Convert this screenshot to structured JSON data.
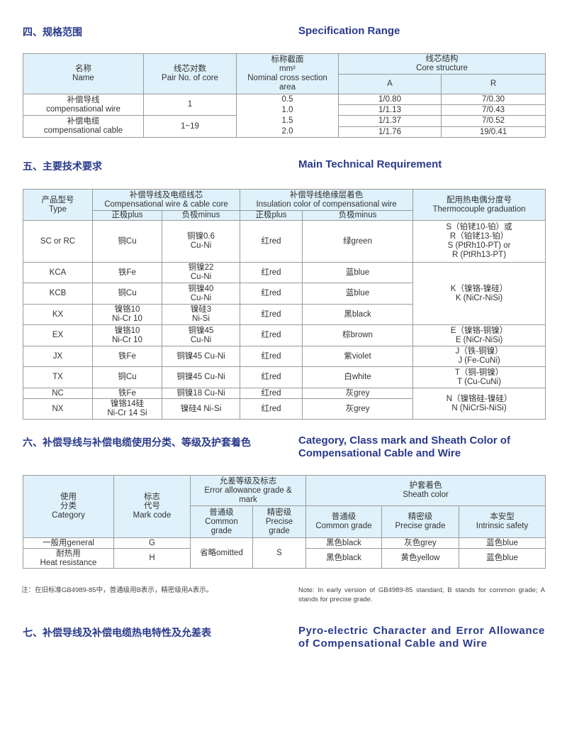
{
  "sections": {
    "s4": {
      "cn": "四、规格范围",
      "en": "Specification Range"
    },
    "s5": {
      "cn": "五、主要技术要求",
      "en": "Main Technical Requirement"
    },
    "s6": {
      "cn": "六、补偿导线与补偿电缆使用分类、等级及护套着色",
      "en": "Category, Class mark and Sheath Color of Compensational Cable and Wire"
    },
    "s7": {
      "cn": "七、补偿导线及补偿电缆热电特性及允差表",
      "en": "Pyro-electric Character and Error Allowance of Compensational Cable and Wire"
    }
  },
  "spec_table": {
    "headers": {
      "name": "名称\nName",
      "pairs": "线芯对数\nPair No. of core",
      "area": "标称截面\nmm²\nNominal cross section\narea",
      "core": "线芯结构\nCore structure",
      "a": "A",
      "r": "R"
    },
    "names": [
      "补偿导线\ncompensational wire",
      "补偿电缆\ncompensational cable"
    ],
    "pairs": [
      "1",
      "1~19"
    ],
    "rows": [
      {
        "area": "0.5",
        "a": "1/0.80",
        "r": "7/0.30"
      },
      {
        "area": "1.0",
        "a": "1/1.13",
        "r": "7/0.43"
      },
      {
        "area": "1.5",
        "a": "1/1.37",
        "r": "7/0.52"
      },
      {
        "area": "2.0",
        "a": "1/1.76",
        "r": "19/0.41"
      }
    ]
  },
  "tech_table": {
    "headers": {
      "type": "产品型号\nType",
      "core": "补偿导线及电缆线芯\nCompensational wire & cable core",
      "insulation": "补偿导线绝缘层着色\nInsulation color of compensational wire",
      "graduation": "配用热电偶分度号\nThermocouple graduation",
      "plus": "正极plus",
      "minus": "负极minus"
    },
    "rows": [
      {
        "type": "SC or RC",
        "core_plus": "铜Cu",
        "core_minus": "铜镍0.6\nCu-Ni",
        "ins_plus": "红red",
        "ins_minus": "绿green"
      },
      {
        "type": "KCA",
        "core_plus": "铁Fe",
        "core_minus": "铜镍22\nCu-Ni",
        "ins_plus": "红red",
        "ins_minus": "蓝blue"
      },
      {
        "type": "KCB",
        "core_plus": "铜Cu",
        "core_minus": "铜镍40\nCu-Ni",
        "ins_plus": "红red",
        "ins_minus": "蓝blue"
      },
      {
        "type": "KX",
        "core_plus": "镍铬10\nNi-Cr 10",
        "core_minus": "镍硅3\nNi-Si",
        "ins_plus": "红red",
        "ins_minus": "黑black"
      },
      {
        "type": "EX",
        "core_plus": "镍铬10\nNi-Cr 10",
        "core_minus": "铜镍45\nCu-Ni",
        "ins_plus": "红red",
        "ins_minus": "棕brown"
      },
      {
        "type": "JX",
        "core_plus": "铁Fe",
        "core_minus": "铜镍45 Cu-Ni",
        "ins_plus": "红red",
        "ins_minus": "紫violet"
      },
      {
        "type": "TX",
        "core_plus": "铜Cu",
        "core_minus": "铜镍45 Cu-Ni",
        "ins_plus": "红red",
        "ins_minus": "白white"
      },
      {
        "type": "NC",
        "core_plus": "铁Fe",
        "core_minus": "铜镍18 Cu-Ni",
        "ins_plus": "红red",
        "ins_minus": "灰grey"
      },
      {
        "type": "NX",
        "core_plus": "镍铬14硅\nNi-Cr 14 Si",
        "core_minus": "镍硅4 Ni-Si",
        "ins_plus": "红red",
        "ins_minus": "灰grey"
      }
    ],
    "graduations": [
      "S（铂铑10-铂）或\nR（铂铑13-铂）\nS (PtRh10-PT) or\nR (PtRh13-PT)",
      "K（镍铬-镍硅）\nK (NiCr-NiSi)",
      "E（镍铬-铜镍）\nE (NiCr-NiSi)",
      "J（铁-铜镍）\nJ (Fe-CuNi)",
      "T（铜-铜镍）\nT (Cu-CuNi)",
      "N（镍铬硅-镍硅）\nN (NiCrSi-NiSi)"
    ]
  },
  "category_table": {
    "headers": {
      "category": "使用\n分类\nCategory",
      "mark": "标志\n代号\nMark code",
      "error": "允差等级及标志\nError allowance grade &\nmark",
      "sheath": "护套着色\nSheath color",
      "err_common": "普通级\nCommon\ngrade",
      "err_precise": "精密级\nPrecise\ngrade",
      "sh_common": "普通级\nCommon grade",
      "sh_precise": "精密级\nPrecise grade",
      "sh_intrinsic": "本安型\nIntrinsic safety"
    },
    "err_common": "省略omitted",
    "err_precise": "S",
    "rows": [
      {
        "category": "一般用general",
        "mark": "G",
        "sh_common": "黑色black",
        "sh_precise": "灰色grey",
        "sh_intrinsic": "蓝色blue"
      },
      {
        "category": "耐热用\nHeat resistance",
        "mark": "H",
        "sh_common": "黑色black",
        "sh_precise": "黄色yellow",
        "sh_intrinsic": "蓝色blue"
      }
    ]
  },
  "notes": {
    "cn": "注：在旧标准GB4989-85中，普通级用B表示，精密级用A表示。",
    "en": "Note: In early version of GB4989-85 standard, B stands for common grade; A stands for precise grade."
  },
  "colors": {
    "heading": "#2a3a8c",
    "header_bg": "#dff1fa",
    "border": "#9a9a9a"
  }
}
